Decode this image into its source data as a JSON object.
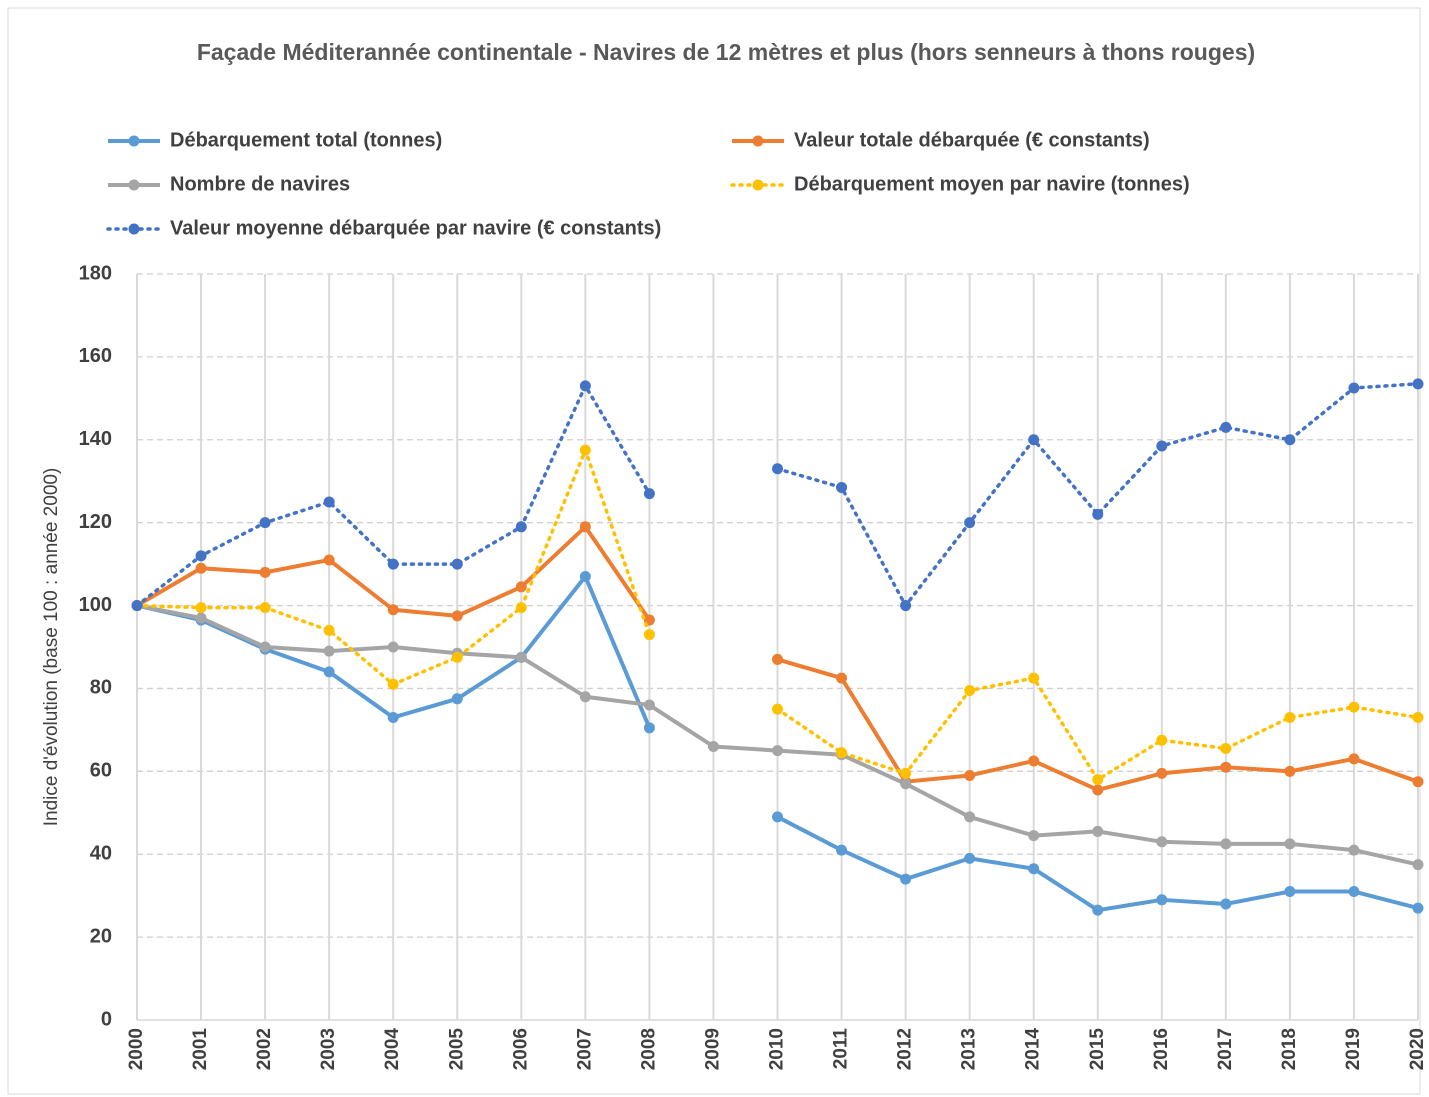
{
  "chart_data": {
    "type": "line",
    "title": "Façade Méditerannée continentale - Navires de 12 mètres et plus (hors senneurs à thons rouges)",
    "y_label": "Indice d'évolution (base 100 : année 2000)",
    "categories": [
      "2000",
      "2001",
      "2002",
      "2003",
      "2004",
      "2005",
      "2006",
      "2007",
      "2008",
      "2009",
      "2010",
      "2011",
      "2012",
      "2013",
      "2014",
      "2015",
      "2016",
      "2017",
      "2018",
      "2019",
      "2020"
    ],
    "ylim": [
      0,
      180
    ],
    "yticks": [
      0,
      20,
      40,
      60,
      80,
      100,
      120,
      140,
      160,
      180
    ],
    "grid": true,
    "series": [
      {
        "name": "Débarquement total (tonnes)",
        "color": "#5b9bd5",
        "dash": false,
        "values": [
          100,
          96.5,
          89.5,
          84,
          73,
          77.5,
          87.5,
          107,
          70.5,
          null,
          49,
          41,
          34,
          39,
          36.5,
          26.5,
          29,
          28,
          31,
          31,
          27
        ]
      },
      {
        "name": "Valeur totale débarquée (€ constants)",
        "color": "#ed7d31",
        "dash": false,
        "values": [
          100,
          109,
          108,
          111,
          99,
          97.5,
          104.5,
          119,
          96.5,
          null,
          87,
          82.5,
          57.5,
          59,
          62.5,
          55.5,
          59.5,
          61,
          60,
          63,
          57.5
        ]
      },
      {
        "name": "Nombre de navires",
        "color": "#a5a5a5",
        "dash": false,
        "values": [
          100,
          97,
          90,
          89,
          90,
          88.5,
          87.5,
          78,
          76,
          66,
          65,
          64,
          57,
          49,
          44.5,
          45.5,
          43,
          42.5,
          42.5,
          41,
          37.5
        ]
      },
      {
        "name": "Débarquement moyen par navire (tonnes)",
        "color": "#ffc000",
        "dash": true,
        "values": [
          100,
          99.5,
          99.5,
          94,
          81,
          87.5,
          99.5,
          137.5,
          93,
          null,
          75,
          64.5,
          59.5,
          79.5,
          82.5,
          58,
          67.5,
          65.5,
          73,
          75.5,
          73
        ]
      },
      {
        "name": "Valeur moyenne débarquée par navire (€ constants)",
        "color": "#4472c4",
        "dash": true,
        "values": [
          100,
          112,
          120,
          125,
          110,
          110,
          119,
          153,
          127,
          null,
          133,
          128.5,
          100,
          120,
          140,
          122,
          138.5,
          143,
          140,
          152.5,
          153.5
        ]
      }
    ]
  }
}
